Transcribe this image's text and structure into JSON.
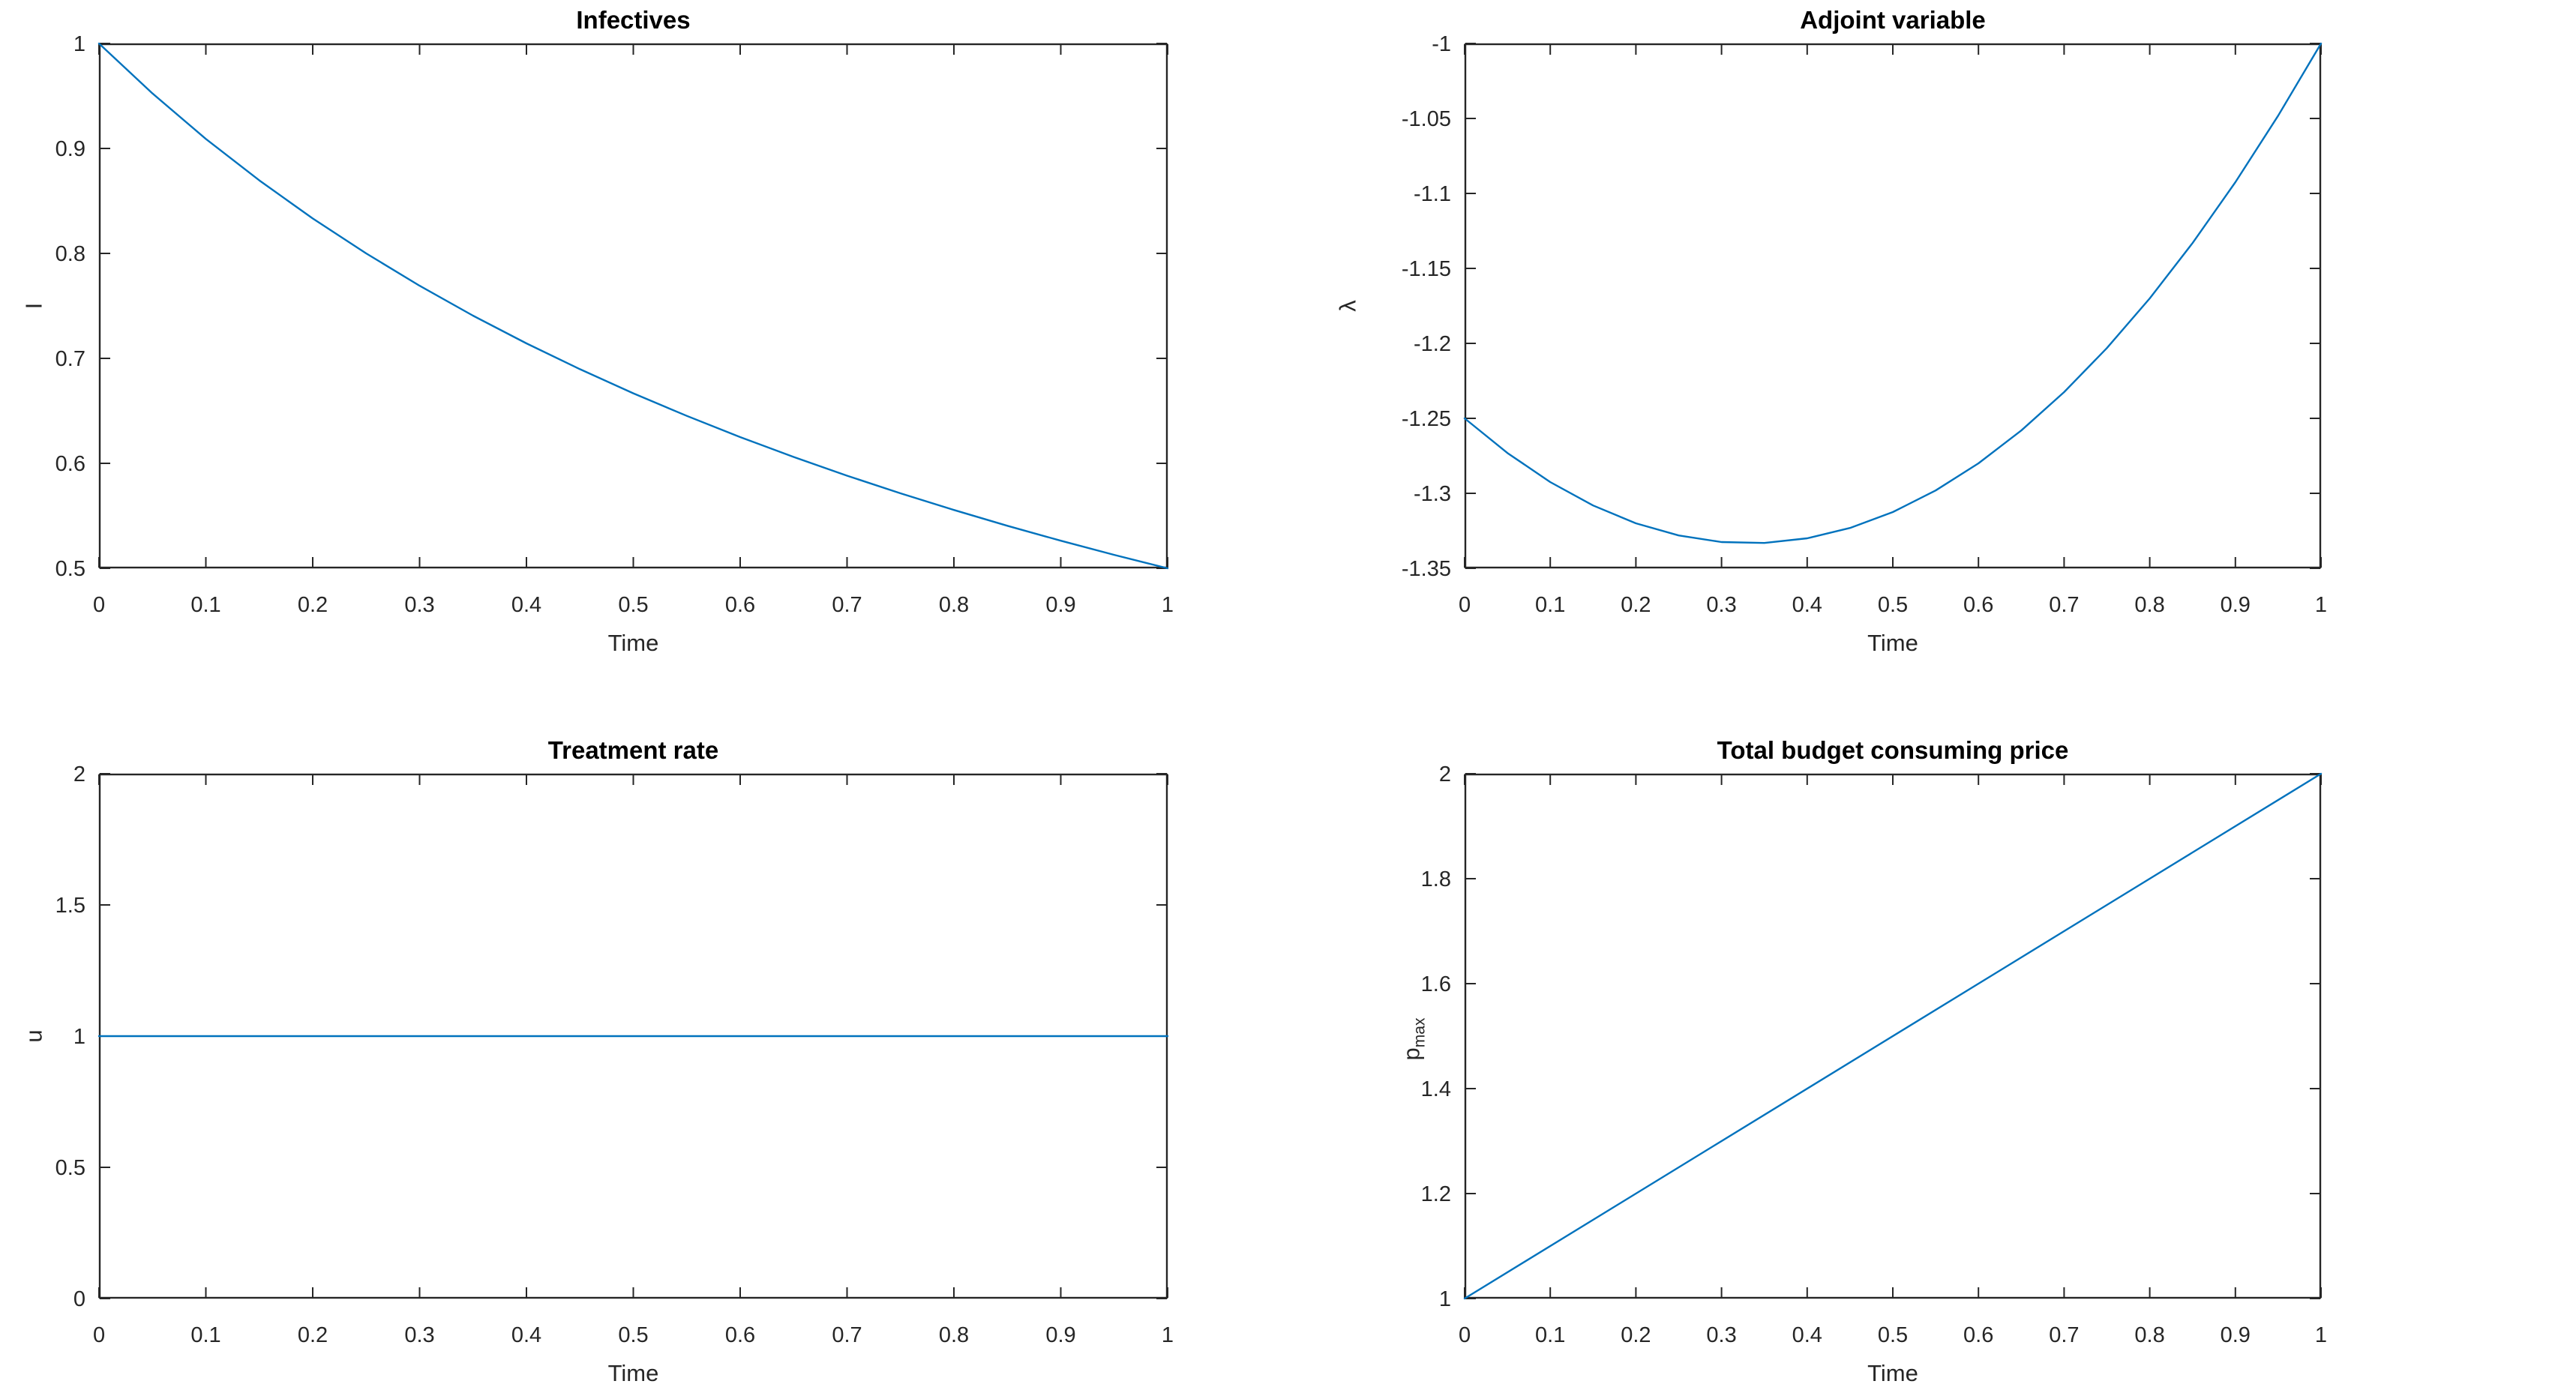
{
  "style": {
    "background": "#ffffff",
    "line_color": "#0072BD",
    "axis_color": "#262626",
    "tick_color": "#262626",
    "title_color": "#000000"
  },
  "chart_data": [
    {
      "type": "line",
      "id": "infectives",
      "title": "Infectives",
      "xlabel": "Time",
      "ylabel": "I",
      "ylabel_sub": "",
      "xlim": [
        0,
        1
      ],
      "ylim": [
        0.5,
        1
      ],
      "xticks": [
        0,
        0.1,
        0.2,
        0.3,
        0.4,
        0.5,
        0.6,
        0.7,
        0.8,
        0.9,
        1
      ],
      "yticks": [
        0.5,
        0.6,
        0.7,
        0.8,
        0.9,
        1
      ],
      "grid": false,
      "legend": "none",
      "series": [
        {
          "name": "I",
          "x": [
            0,
            0.05,
            0.1,
            0.15,
            0.2,
            0.25,
            0.3,
            0.35,
            0.4,
            0.45,
            0.5,
            0.55,
            0.6,
            0.65,
            0.7,
            0.75,
            0.8,
            0.85,
            0.9,
            0.95,
            1
          ],
          "y": [
            1,
            0.9524,
            0.9091,
            0.8696,
            0.8333,
            0.8,
            0.7692,
            0.7407,
            0.7143,
            0.6897,
            0.6667,
            0.6452,
            0.625,
            0.6061,
            0.5882,
            0.5714,
            0.5556,
            0.5405,
            0.5263,
            0.5128,
            0.5
          ]
        }
      ]
    },
    {
      "type": "line",
      "id": "adjoint-variable",
      "title": "Adjoint variable",
      "xlabel": "Time",
      "ylabel": "λ",
      "ylabel_sub": "",
      "xlim": [
        0,
        1
      ],
      "ylim": [
        -1.35,
        -1
      ],
      "xticks": [
        0,
        0.1,
        0.2,
        0.3,
        0.4,
        0.5,
        0.6,
        0.7,
        0.8,
        0.9,
        1
      ],
      "yticks": [
        -1.35,
        -1.3,
        -1.25,
        -1.2,
        -1.15,
        -1.1,
        -1.05,
        -1
      ],
      "grid": false,
      "legend": "none",
      "series": [
        {
          "name": "lambda",
          "x": [
            0,
            0.05,
            0.1,
            0.15,
            0.2,
            0.25,
            0.3,
            0.35,
            0.4,
            0.45,
            0.5,
            0.55,
            0.6,
            0.65,
            0.7,
            0.75,
            0.8,
            0.85,
            0.9,
            0.95,
            1
          ],
          "y": [
            -1.25,
            -1.2731,
            -1.2925,
            -1.3081,
            -1.32,
            -1.3281,
            -1.3325,
            -1.3331,
            -1.33,
            -1.3231,
            -1.3125,
            -1.2981,
            -1.28,
            -1.2581,
            -1.2325,
            -1.2031,
            -1.17,
            -1.1331,
            -1.0925,
            -1.0481,
            -1
          ]
        }
      ]
    },
    {
      "type": "line",
      "id": "treatment-rate",
      "title": "Treatment rate",
      "xlabel": "Time",
      "ylabel": "u",
      "ylabel_sub": "",
      "xlim": [
        0,
        1
      ],
      "ylim": [
        0,
        2
      ],
      "xticks": [
        0,
        0.1,
        0.2,
        0.3,
        0.4,
        0.5,
        0.6,
        0.7,
        0.8,
        0.9,
        1
      ],
      "yticks": [
        0,
        0.5,
        1,
        1.5,
        2
      ],
      "grid": false,
      "legend": "none",
      "series": [
        {
          "name": "u",
          "x": [
            0,
            1
          ],
          "y": [
            1,
            1
          ]
        }
      ]
    },
    {
      "type": "line",
      "id": "budget-price",
      "title": "Total budget consuming price",
      "xlabel": "Time",
      "ylabel": "p",
      "ylabel_sub": "max",
      "xlim": [
        0,
        1
      ],
      "ylim": [
        1,
        2
      ],
      "xticks": [
        0,
        0.1,
        0.2,
        0.3,
        0.4,
        0.5,
        0.6,
        0.7,
        0.8,
        0.9,
        1
      ],
      "yticks": [
        1,
        1.2,
        1.4,
        1.6,
        1.8,
        2
      ],
      "grid": false,
      "legend": "none",
      "series": [
        {
          "name": "p_max",
          "x": [
            0,
            1
          ],
          "y": [
            1,
            2
          ]
        }
      ]
    }
  ]
}
